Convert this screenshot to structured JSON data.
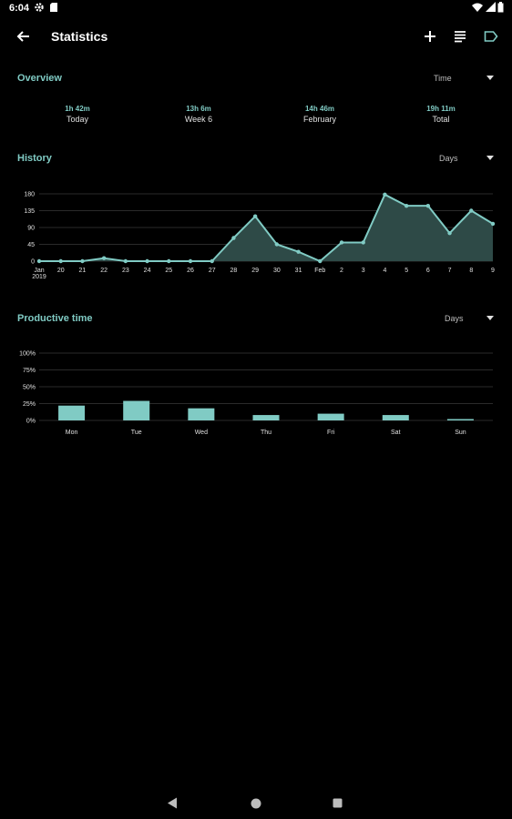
{
  "status_bar": {
    "time": "6:04"
  },
  "app_bar": {
    "title": "Statistics",
    "actions": [
      "add-icon",
      "list-icon",
      "label-icon"
    ]
  },
  "overview": {
    "title": "Overview",
    "dropdown": "Time",
    "items": [
      {
        "value": "1h 42m",
        "label": "Today"
      },
      {
        "value": "13h 6m",
        "label": "Week 6"
      },
      {
        "value": "14h 46m",
        "label": "February"
      },
      {
        "value": "19h 11m",
        "label": "Total"
      }
    ]
  },
  "history": {
    "title": "History",
    "dropdown": "Days"
  },
  "productive": {
    "title": "Productive time",
    "dropdown": "Days"
  },
  "colors": {
    "accent": "#80cbc4",
    "background": "#000000",
    "area_fill": "#2e4a47",
    "grid": "#2a2a2a"
  },
  "chart_data": [
    {
      "type": "area",
      "x": [
        "Jan 2019",
        "20",
        "21",
        "22",
        "23",
        "24",
        "25",
        "26",
        "27",
        "28",
        "29",
        "30",
        "31",
        "Feb",
        "2",
        "3",
        "4",
        "5",
        "6",
        "7",
        "8",
        "9"
      ],
      "x_tick_labels": [
        [
          "Jan",
          "2019"
        ],
        [
          "20"
        ],
        [
          "21"
        ],
        [
          "22"
        ],
        [
          "23"
        ],
        [
          "24"
        ],
        [
          "25"
        ],
        [
          "26"
        ],
        [
          "27"
        ],
        [
          "28"
        ],
        [
          "29"
        ],
        [
          "30"
        ],
        [
          "31"
        ],
        [
          "Feb"
        ],
        [
          "2"
        ],
        [
          "3"
        ],
        [
          "4"
        ],
        [
          "5"
        ],
        [
          "6"
        ],
        [
          "7"
        ],
        [
          "8"
        ],
        [
          "9"
        ]
      ],
      "values": [
        0,
        0,
        0,
        8,
        0,
        0,
        0,
        0,
        0,
        62,
        120,
        45,
        25,
        0,
        50,
        50,
        178,
        148,
        148,
        75,
        135,
        100
      ],
      "y_ticks": [
        "180",
        "135",
        "90",
        "45",
        "0"
      ],
      "ylim": [
        0,
        180
      ],
      "grid": true
    },
    {
      "type": "bar",
      "categories": [
        "Mon",
        "Tue",
        "Wed",
        "Thu",
        "Fri",
        "Sat",
        "Sun"
      ],
      "values": [
        22,
        29,
        18,
        8,
        10,
        8,
        2
      ],
      "y_ticks": [
        "100%",
        "75%",
        "50%",
        "25%",
        "0%"
      ],
      "ylim": [
        0,
        100
      ],
      "grid": true
    }
  ]
}
